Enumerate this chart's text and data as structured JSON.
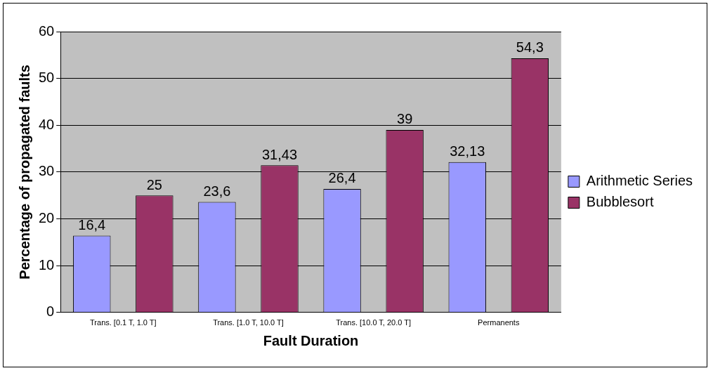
{
  "chart_data": {
    "type": "bar",
    "xlabel": "Fault Duration",
    "ylabel": "Percentage of propagated faults",
    "categories": [
      "Trans. [0.1 T, 1.0 T]",
      "Trans. [1.0 T, 10.0 T]",
      "Trans. [10.0 T, 20.0 T]",
      "Permanents"
    ],
    "series": [
      {
        "name": "Arithmetic Series",
        "color": "#9999ff",
        "values": [
          16.4,
          23.6,
          26.4,
          32.13
        ],
        "value_labels": [
          "16,4",
          "23,6",
          "26,4",
          "32,13"
        ]
      },
      {
        "name": "Bubblesort",
        "color": "#993366",
        "values": [
          25,
          31.43,
          39,
          54.3
        ],
        "value_labels": [
          "25",
          "31,43",
          "39",
          "54,3"
        ]
      }
    ],
    "ylim": [
      0,
      60
    ],
    "yticks": [
      0,
      10,
      20,
      30,
      40,
      50,
      60
    ],
    "grid": "y",
    "legend": "right"
  }
}
